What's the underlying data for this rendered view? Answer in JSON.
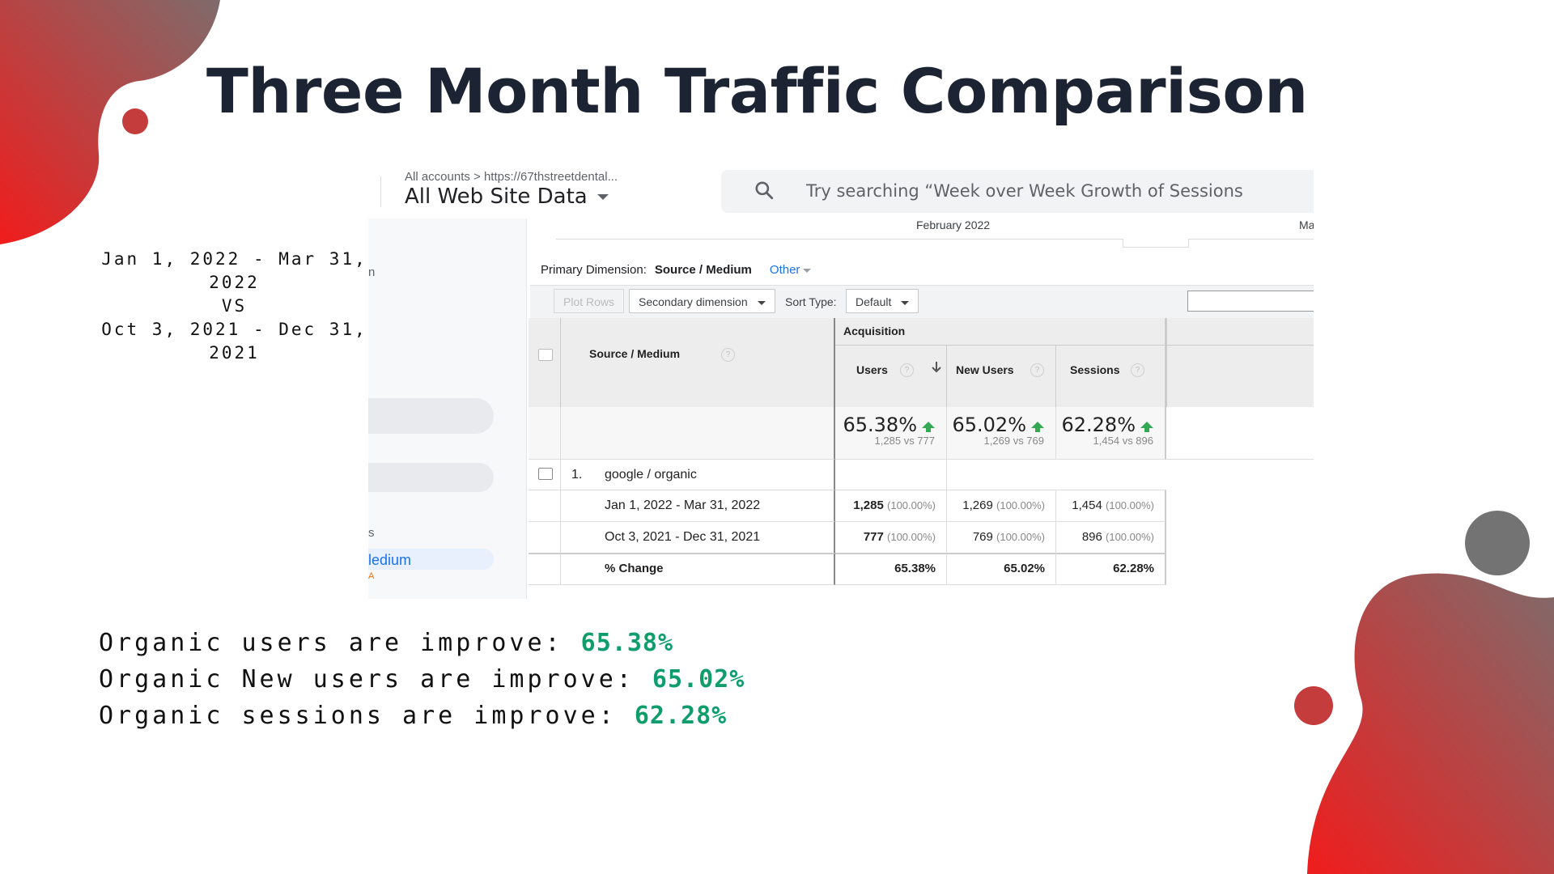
{
  "slide": {
    "title": "Three Month Traffic Comparison",
    "date_range": [
      "Jan 1, 2022 - Mar 31, 2022",
      "VS",
      "Oct 3, 2021 - Dec 31, 2021"
    ],
    "accent_color": "#e42727",
    "highlight_color": "#0f9d6c"
  },
  "screenshot": {
    "breadcrumb": "All accounts  >  https://67thstreetdental...",
    "property": "All Web Site Data",
    "search_placeholder": "Try searching “Week over Week Growth of Sessions",
    "left_fragments": [
      "n",
      "s",
      "ledium",
      "A"
    ],
    "timeline": {
      "month1": "February 2022",
      "month2": "Ma"
    },
    "primary_dimension_label": "Primary Dimension:",
    "primary_dimension_value": "Source / Medium",
    "other_label": "Other",
    "toolbar": {
      "plot_rows": "Plot Rows",
      "secondary_dimension": "Secondary dimension",
      "sort_type_label": "Sort Type:",
      "sort_type_value": "Default"
    },
    "table": {
      "group_header": "Acquisition",
      "col_source": "Source / Medium",
      "columns": [
        "Users",
        "New Users",
        "Sessions"
      ],
      "totals": [
        {
          "pct": "65.38%",
          "compare": "1,285 vs 777"
        },
        {
          "pct": "65.02%",
          "compare": "1,269 vs 769"
        },
        {
          "pct": "62.28%",
          "compare": "1,454 vs 896"
        }
      ],
      "row_index": "1.",
      "row_name": "google / organic",
      "sub_rows": [
        {
          "label": "Jan 1, 2022 - Mar 31, 2022",
          "values": [
            [
              "1,285",
              "(100.00%)"
            ],
            [
              "1,269",
              "(100.00%)"
            ],
            [
              "1,454",
              "(100.00%)"
            ]
          ]
        },
        {
          "label": "Oct 3, 2021 - Dec 31, 2021",
          "values": [
            [
              "777",
              "(100.00%)"
            ],
            [
              "769",
              "(100.00%)"
            ],
            [
              "896",
              "(100.00%)"
            ]
          ]
        }
      ],
      "change_label": "% Change",
      "change_values": [
        "65.38%",
        "65.02%",
        "62.28%"
      ]
    }
  },
  "summary": [
    {
      "text": "Organic users are improve: ",
      "value": "65.38%"
    },
    {
      "text": "Organic New users are improve: ",
      "value": "65.02%"
    },
    {
      "text": "Organic sessions are improve: ",
      "value": "62.28%"
    }
  ]
}
